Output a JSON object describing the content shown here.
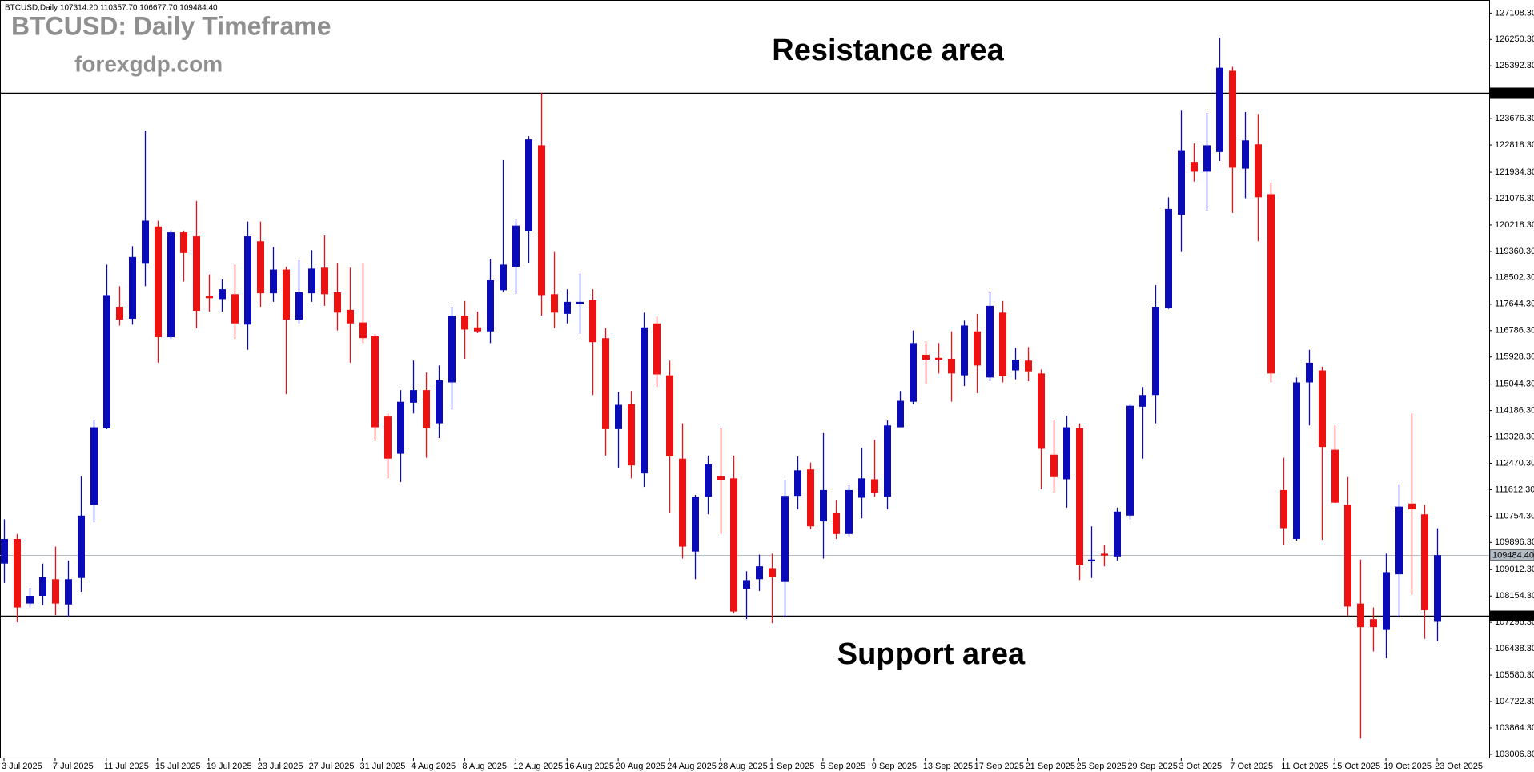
{
  "chart_data": {
    "type": "candlestick",
    "info": "BTCUSD,Daily  107314.20 110357.70 106677.70 109484.40",
    "watermark": [
      "BTCUSD: Daily Timeframe",
      "forexgdp.com"
    ],
    "annotations": [
      "Resistance area",
      "Support area"
    ],
    "up_color": "#0a0ab8",
    "down_color": "#ee1111",
    "categories": [
      "3 Jul 2025",
      null,
      null,
      null,
      "7 Jul 2025",
      null,
      null,
      null,
      "11 Jul 2025",
      null,
      null,
      null,
      "15 Jul 2025",
      null,
      null,
      null,
      "19 Jul 2025",
      null,
      null,
      null,
      "23 Jul 2025",
      null,
      null,
      null,
      "27 Jul 2025",
      null,
      null,
      null,
      "31 Jul 2025",
      null,
      null,
      null,
      "4 Aug 2025",
      null,
      null,
      null,
      "8 Aug 2025",
      null,
      null,
      null,
      "12 Aug 2025",
      null,
      null,
      null,
      "16 Aug 2025",
      null,
      null,
      null,
      "20 Aug 2025",
      null,
      null,
      null,
      "24 Aug 2025",
      null,
      null,
      null,
      "28 Aug 2025",
      null,
      null,
      null,
      "1 Sep 2025",
      null,
      null,
      null,
      "5 Sep 2025",
      null,
      null,
      null,
      "9 Sep 2025",
      null,
      null,
      null,
      "13 Sep 2025",
      null,
      null,
      null,
      "17 Sep 2025",
      null,
      null,
      null,
      "21 Sep 2025",
      null,
      null,
      null,
      "25 Sep 2025",
      null,
      null,
      null,
      "29 Sep 2025",
      null,
      null,
      null,
      "3 Oct 2025",
      null,
      null,
      null,
      "7 Oct 2025",
      null,
      null,
      null,
      "11 Oct 2025",
      null,
      null,
      null,
      "15 Oct 2025",
      null,
      null,
      null,
      "19 Oct 2025",
      null,
      null,
      null,
      "23 Oct 2025"
    ],
    "ohlc": [
      [
        109210,
        110650,
        108580,
        110010
      ],
      [
        110010,
        110170,
        107300,
        107780
      ],
      [
        107910,
        108420,
        107780,
        108160
      ],
      [
        108160,
        109210,
        107850,
        108770
      ],
      [
        108700,
        109760,
        107530,
        107910
      ],
      [
        107880,
        109310,
        107460,
        108700
      ],
      [
        108740,
        112050,
        108290,
        110770
      ],
      [
        111120,
        113890,
        110550,
        113640
      ],
      [
        113610,
        118930,
        113580,
        117940
      ],
      [
        117560,
        118230,
        116950,
        117140
      ],
      [
        117170,
        119530,
        116980,
        119180
      ],
      [
        118960,
        123290,
        118230,
        120360
      ],
      [
        120170,
        120360,
        115740,
        116570
      ],
      [
        116570,
        120040,
        116510,
        119980
      ],
      [
        119980,
        120040,
        118380,
        119310
      ],
      [
        119850,
        121000,
        116860,
        117430
      ],
      [
        117910,
        118610,
        117400,
        117840
      ],
      [
        117810,
        118450,
        117400,
        118130
      ],
      [
        117970,
        118930,
        116510,
        117020
      ],
      [
        116980,
        120330,
        116160,
        119850
      ],
      [
        119690,
        120330,
        117560,
        118000
      ],
      [
        118000,
        119500,
        117720,
        118770
      ],
      [
        118770,
        118860,
        114720,
        117140
      ],
      [
        117140,
        119080,
        117020,
        118030
      ],
      [
        118000,
        119400,
        117720,
        118800
      ],
      [
        118830,
        119880,
        117590,
        117970
      ],
      [
        118030,
        118990,
        116790,
        117370
      ],
      [
        117460,
        118830,
        115740,
        117020
      ],
      [
        117050,
        118990,
        116380,
        116540
      ],
      [
        116600,
        116670,
        113190,
        113640
      ],
      [
        113990,
        114090,
        111980,
        112620
      ],
      [
        112780,
        114850,
        111860,
        114470
      ],
      [
        114440,
        115810,
        114090,
        114850
      ],
      [
        114850,
        115420,
        112650,
        113610
      ],
      [
        113770,
        115650,
        113290,
        115170
      ],
      [
        115100,
        117560,
        114210,
        117270
      ],
      [
        117270,
        117750,
        115870,
        116820
      ],
      [
        116890,
        117400,
        116700,
        116760
      ],
      [
        116760,
        119120,
        116380,
        118420
      ],
      [
        118100,
        122330,
        118030,
        118930
      ],
      [
        118860,
        120420,
        117970,
        120200
      ],
      [
        120010,
        123100,
        118990,
        123000
      ],
      [
        122810,
        124520,
        117270,
        117940
      ],
      [
        117970,
        119340,
        116860,
        117370
      ],
      [
        117330,
        118130,
        117020,
        117720
      ],
      [
        117650,
        118640,
        116670,
        117720
      ],
      [
        117780,
        118130,
        114690,
        116410
      ],
      [
        116540,
        116860,
        112720,
        113580
      ],
      [
        113580,
        114790,
        112330,
        114370
      ],
      [
        114400,
        114820,
        111980,
        112400
      ],
      [
        112140,
        117370,
        111700,
        116890
      ],
      [
        117020,
        117240,
        114950,
        115360
      ],
      [
        115330,
        115810,
        110870,
        112690
      ],
      [
        112620,
        113770,
        109370,
        109760
      ],
      [
        109600,
        111440,
        108700,
        111380
      ],
      [
        111380,
        112720,
        110810,
        112430
      ],
      [
        112050,
        113610,
        110170,
        111920
      ],
      [
        111980,
        112720,
        107590,
        107650
      ],
      [
        108390,
        108960,
        107400,
        108670
      ],
      [
        108700,
        109500,
        108320,
        109120
      ],
      [
        109060,
        109530,
        107270,
        108770
      ],
      [
        108610,
        111920,
        107460,
        111410
      ],
      [
        111410,
        112690,
        110970,
        112240
      ],
      [
        112270,
        112490,
        110330,
        110420
      ],
      [
        110580,
        113450,
        109370,
        111600
      ],
      [
        110870,
        111280,
        110010,
        110170
      ],
      [
        110170,
        111760,
        110070,
        111600
      ],
      [
        111350,
        112970,
        110680,
        111980
      ],
      [
        111950,
        113230,
        111380,
        111510
      ],
      [
        111380,
        113860,
        110970,
        113700
      ],
      [
        113640,
        114820,
        113640,
        114500
      ],
      [
        114470,
        116790,
        114400,
        116380
      ],
      [
        116000,
        116440,
        115040,
        115840
      ],
      [
        115900,
        116380,
        115390,
        115840
      ],
      [
        115870,
        116760,
        114470,
        115390
      ],
      [
        115330,
        117110,
        114980,
        116950
      ],
      [
        116760,
        117330,
        114750,
        115650
      ],
      [
        115260,
        118030,
        115140,
        117590
      ],
      [
        117370,
        117750,
        115100,
        115300
      ],
      [
        115490,
        116220,
        115200,
        115840
      ],
      [
        115810,
        116250,
        115140,
        115460
      ],
      [
        115390,
        115520,
        111630,
        112940
      ],
      [
        112750,
        113890,
        111510,
        112020
      ],
      [
        111950,
        114020,
        111030,
        113640
      ],
      [
        113610,
        113770,
        108670,
        109150
      ],
      [
        109280,
        110420,
        108740,
        109340
      ],
      [
        109530,
        109820,
        109120,
        109470
      ],
      [
        109440,
        111030,
        109310,
        110900
      ],
      [
        110770,
        114370,
        110650,
        114340
      ],
      [
        114310,
        114950,
        112620,
        114690
      ],
      [
        114690,
        118260,
        113770,
        117560
      ],
      [
        117520,
        121120,
        117490,
        120740
      ],
      [
        120550,
        123960,
        119340,
        122650
      ],
      [
        122270,
        122870,
        121630,
        121950
      ],
      [
        121950,
        123860,
        120680,
        122810
      ],
      [
        122590,
        126310,
        122300,
        125330
      ],
      [
        125230,
        125360,
        120610,
        122080
      ],
      [
        122050,
        123890,
        121090,
        122970
      ],
      [
        122840,
        123830,
        119690,
        121120
      ],
      [
        121220,
        121600,
        115100,
        115390
      ],
      [
        111600,
        112650,
        109820,
        110360
      ],
      [
        110010,
        115260,
        109950,
        115100
      ],
      [
        115100,
        116160,
        113700,
        115740
      ],
      [
        115490,
        115610,
        109980,
        113000
      ],
      [
        112910,
        113700,
        111180,
        111190
      ],
      [
        111120,
        112020,
        107500,
        107810
      ],
      [
        107910,
        109340,
        103520,
        107140
      ],
      [
        107400,
        107780,
        106350,
        107140
      ],
      [
        107050,
        109530,
        106130,
        108930
      ],
      [
        108860,
        111790,
        107460,
        111060
      ],
      [
        111160,
        114090,
        108200,
        110970
      ],
      [
        110810,
        111120,
        106760,
        107690
      ],
      [
        107314.2,
        110357.7,
        106677.7,
        109484.4
      ]
    ],
    "ylim": [
      102900,
      127430
    ],
    "yticks": [
      {
        "value": 127108.3,
        "label": "127108.30"
      },
      {
        "value": 126250.3,
        "label": "126250.30"
      },
      {
        "value": 125392.3,
        "label": "125392.30"
      },
      {
        "value": 123676.3,
        "label": "123676.30"
      },
      {
        "value": 122818.3,
        "label": "122818.30"
      },
      {
        "value": 121934.3,
        "label": "121934.30"
      },
      {
        "value": 121076.3,
        "label": "121076.30"
      },
      {
        "value": 120218.3,
        "label": "120218.30"
      },
      {
        "value": 119360.3,
        "label": "119360.30"
      },
      {
        "value": 118502.3,
        "label": "118502.30"
      },
      {
        "value": 117644.3,
        "label": "117644.30"
      },
      {
        "value": 116786.3,
        "label": "116786.30"
      },
      {
        "value": 115928.3,
        "label": "115928.30"
      },
      {
        "value": 115044.3,
        "label": "115044.30"
      },
      {
        "value": 114186.3,
        "label": "114186.30"
      },
      {
        "value": 113328.3,
        "label": "113328.30"
      },
      {
        "value": 112470.3,
        "label": "112470.30"
      },
      {
        "value": 111612.3,
        "label": "111612.30"
      },
      {
        "value": 110754.3,
        "label": "110754.30"
      },
      {
        "value": 109896.3,
        "label": "109896.30"
      },
      {
        "value": 109012.3,
        "label": "109012.30"
      },
      {
        "value": 108154.3,
        "label": "108154.30"
      },
      {
        "value": 107296.3,
        "label": "107296.30"
      },
      {
        "value": 106438.3,
        "label": "106438.30"
      },
      {
        "value": 105580.3,
        "label": "105580.30"
      },
      {
        "value": 104722.3,
        "label": "104722.30"
      },
      {
        "value": 103864.3,
        "label": "103864.30"
      },
      {
        "value": 103006.3,
        "label": "103006.30"
      }
    ],
    "levels": [
      124520.51,
      {
        "value": 109484.4,
        "label": "109484.40"
      },
      107514.55
    ],
    "level_colors": [
      "#000000",
      "#b4bcc6",
      "#000000"
    ]
  }
}
